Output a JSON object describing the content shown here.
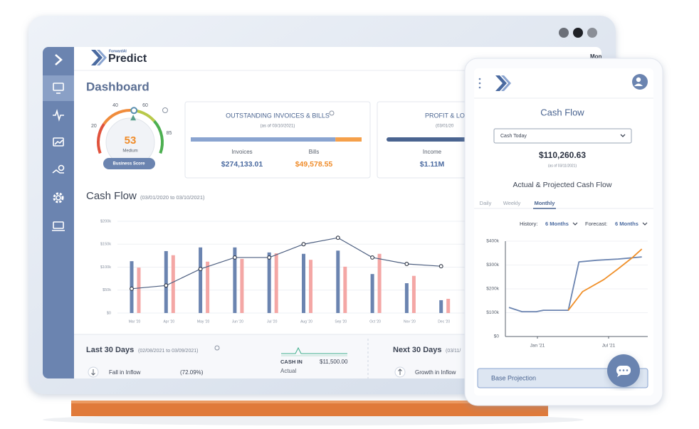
{
  "app": {
    "brand_small": "ForwardAI",
    "brand": "Predict",
    "header_right": "Mon"
  },
  "dashboard": {
    "title": "Dashboard",
    "gauge": {
      "value": 53,
      "label": "Medium",
      "ticks": [
        20,
        40,
        60,
        85
      ],
      "caption": "Business Score"
    },
    "outstanding": {
      "title": "OUTSTANDING INVOICES & BILLS",
      "subtitle": "(as of 03/10/2021)",
      "invoices": {
        "label": "Invoices",
        "value": 274133.01,
        "value_label": "$274,133.01"
      },
      "bills": {
        "label": "Bills",
        "value": 49578.55,
        "value_label": "$49,578.55"
      }
    },
    "profit": {
      "title": "PROFIT & LO",
      "subtitle": "(03/01/20",
      "income": {
        "label": "Income",
        "value_label": "$1.11M"
      }
    },
    "last30": {
      "title": "Last 30 Days",
      "range": "(02/08/2021 to 03/09/2021)",
      "cash_in_label": "CASH IN",
      "cash_in_value": "$11,500.00",
      "cash_in_caption": "Actual",
      "item": "Fall in Inflow",
      "item_value": "(72.09%)"
    },
    "next30": {
      "title": "Next 30 Days",
      "range": "(03/11/",
      "item": "Growth in Inflow"
    }
  },
  "chart_data": [
    {
      "type": "bar",
      "title": "Cash Flow",
      "subtitle": "(03/01/2020 to 03/10/2021)",
      "categories": [
        "Mar '20",
        "Apr '20",
        "May '20",
        "Jun '20",
        "Jul '20",
        "Aug '20",
        "Sep '20",
        "Oct '20",
        "Nov '20",
        "Dec '20"
      ],
      "series": [
        {
          "type": "bar",
          "color": "#6b84b0",
          "values": [
            113,
            135,
            143,
            143,
            132,
            129,
            136,
            85,
            65,
            28
          ]
        },
        {
          "type": "bar",
          "color": "#f4a7a5",
          "values": [
            99,
            126,
            112,
            118,
            130,
            116,
            101,
            129,
            81,
            31
          ]
        },
        {
          "type": "line",
          "color": "#4d5f80",
          "values": [
            53,
            60,
            96,
            121,
            121,
            150,
            164,
            121,
            107,
            102
          ]
        }
      ],
      "ylim": [
        0,
        200
      ],
      "yticks": [
        {
          "value": 0,
          "label": "$0"
        },
        {
          "value": 50,
          "label": "$50k"
        },
        {
          "value": 100,
          "label": "$100k"
        },
        {
          "value": 150,
          "label": "$150k"
        },
        {
          "value": 200,
          "label": "$200k"
        }
      ],
      "grid": true
    },
    {
      "type": "line",
      "title": "Actual & Projected Cash Flow",
      "series": [
        {
          "color": "#6b84b0",
          "x": [
            -2.4,
            -1.3,
            -0.1,
            0.5,
            2.6,
            3.5,
            5,
            6.8,
            8.8
          ],
          "values": [
            122,
            104,
            104,
            110,
            110,
            313,
            320,
            325,
            334
          ]
        },
        {
          "color": "#f0902a",
          "x": [
            2.6,
            3.8,
            5.6,
            6.8,
            8,
            8.8
          ],
          "values": [
            110,
            188,
            239,
            284,
            331,
            367
          ]
        }
      ],
      "xlim": [
        -2.7,
        9.3
      ],
      "xticks": [
        {
          "value": 0,
          "label": "Jan '21"
        },
        {
          "value": 6,
          "label": "Jul '21"
        }
      ],
      "ylim": [
        0,
        400
      ],
      "yticks": [
        {
          "value": 0,
          "label": "$0"
        },
        {
          "value": 100,
          "label": "$100k"
        },
        {
          "value": 200,
          "label": "$200k"
        },
        {
          "value": 300,
          "label": "$300k"
        },
        {
          "value": 400,
          "label": "$400k"
        }
      ],
      "grid": true
    }
  ],
  "phone": {
    "title": "Cash Flow",
    "dropdown": "Cash Today",
    "amount": "$110,260.63",
    "as_of": "(as of 03/11/2021)",
    "tabs": [
      "Daily",
      "Weekly",
      "Monthly"
    ],
    "active_tab": 2,
    "history_label": "History:",
    "history_value": "6 Months",
    "forecast_label": "Forecast:",
    "forecast_value": "6 Months",
    "button": "Base Projection"
  }
}
